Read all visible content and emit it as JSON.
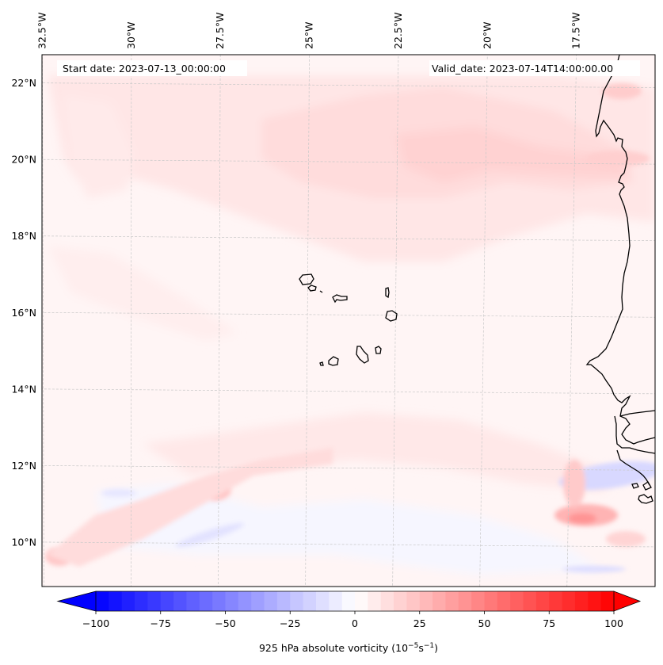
{
  "chart_data": {
    "type": "heatmap",
    "title": "",
    "variable": "925 hPa absolute vorticity",
    "annotations": {
      "start_date": "Start date: 2023-07-13_00:00:00",
      "valid_date": "Valid_date: 2023-07-14T14:00:00.00"
    },
    "lon_ticks": [
      {
        "value": -32.5,
        "label": "32.5°W"
      },
      {
        "value": -30,
        "label": "30°W"
      },
      {
        "value": -27.5,
        "label": "27.5°W"
      },
      {
        "value": -25,
        "label": "25°W"
      },
      {
        "value": -22.5,
        "label": "22.5°W"
      },
      {
        "value": -20,
        "label": "20°W"
      },
      {
        "value": -17.5,
        "label": "17.5°W"
      }
    ],
    "lat_ticks": [
      {
        "value": 22,
        "label": "22°N"
      },
      {
        "value": 20,
        "label": "20°N"
      },
      {
        "value": 18,
        "label": "18°N"
      },
      {
        "value": 16,
        "label": "16°N"
      },
      {
        "value": 14,
        "label": "14°N"
      },
      {
        "value": 12,
        "label": "12°N"
      },
      {
        "value": 10,
        "label": "10°N"
      }
    ],
    "extent": {
      "lon": [
        -32.6,
        -15.2
      ],
      "lat": [
        8.9,
        22.8
      ]
    },
    "grid": true,
    "colorbar": {
      "label": "925 hPa absolute vorticity (10",
      "label_exp1": "−5",
      "label_mid": "s",
      "label_exp2": "−1",
      "label_end": ")",
      "vmin": -100,
      "vmax": 100,
      "step": 5,
      "extend": "both",
      "cmap": "bwr",
      "ticks": [
        -100,
        -75,
        -50,
        -25,
        0,
        25,
        50,
        75,
        100
      ],
      "tick_labels": [
        "−100",
        "−75",
        "−50",
        "−25",
        "0",
        "25",
        "50",
        "75",
        "100"
      ],
      "location": "bottom"
    },
    "features": [
      {
        "name": "subtropical-positive-band",
        "lon": -22.5,
        "lat": 19.5,
        "value": 10
      },
      {
        "name": "vorticity-max-southwest",
        "lon": -30.5,
        "lat": 10.3,
        "value": 35
      },
      {
        "name": "vorticity-max-central-south",
        "lon": -27.8,
        "lat": 11.3,
        "value": 30
      },
      {
        "name": "vorticity-max-southeast",
        "lon": -17.5,
        "lat": 10.6,
        "value": 35
      },
      {
        "name": "vorticity-min-southeast",
        "lon": -16.5,
        "lat": 11.5,
        "value": -20
      },
      {
        "name": "vorticity-max-sw-corner",
        "lon": -32.3,
        "lat": 9.5,
        "value": 20
      }
    ],
    "land_outlines": [
      "Cape Verde islands",
      "West African coast (Mauritania, Senegal, Gambia, Guinea-Bissau)"
    ]
  }
}
